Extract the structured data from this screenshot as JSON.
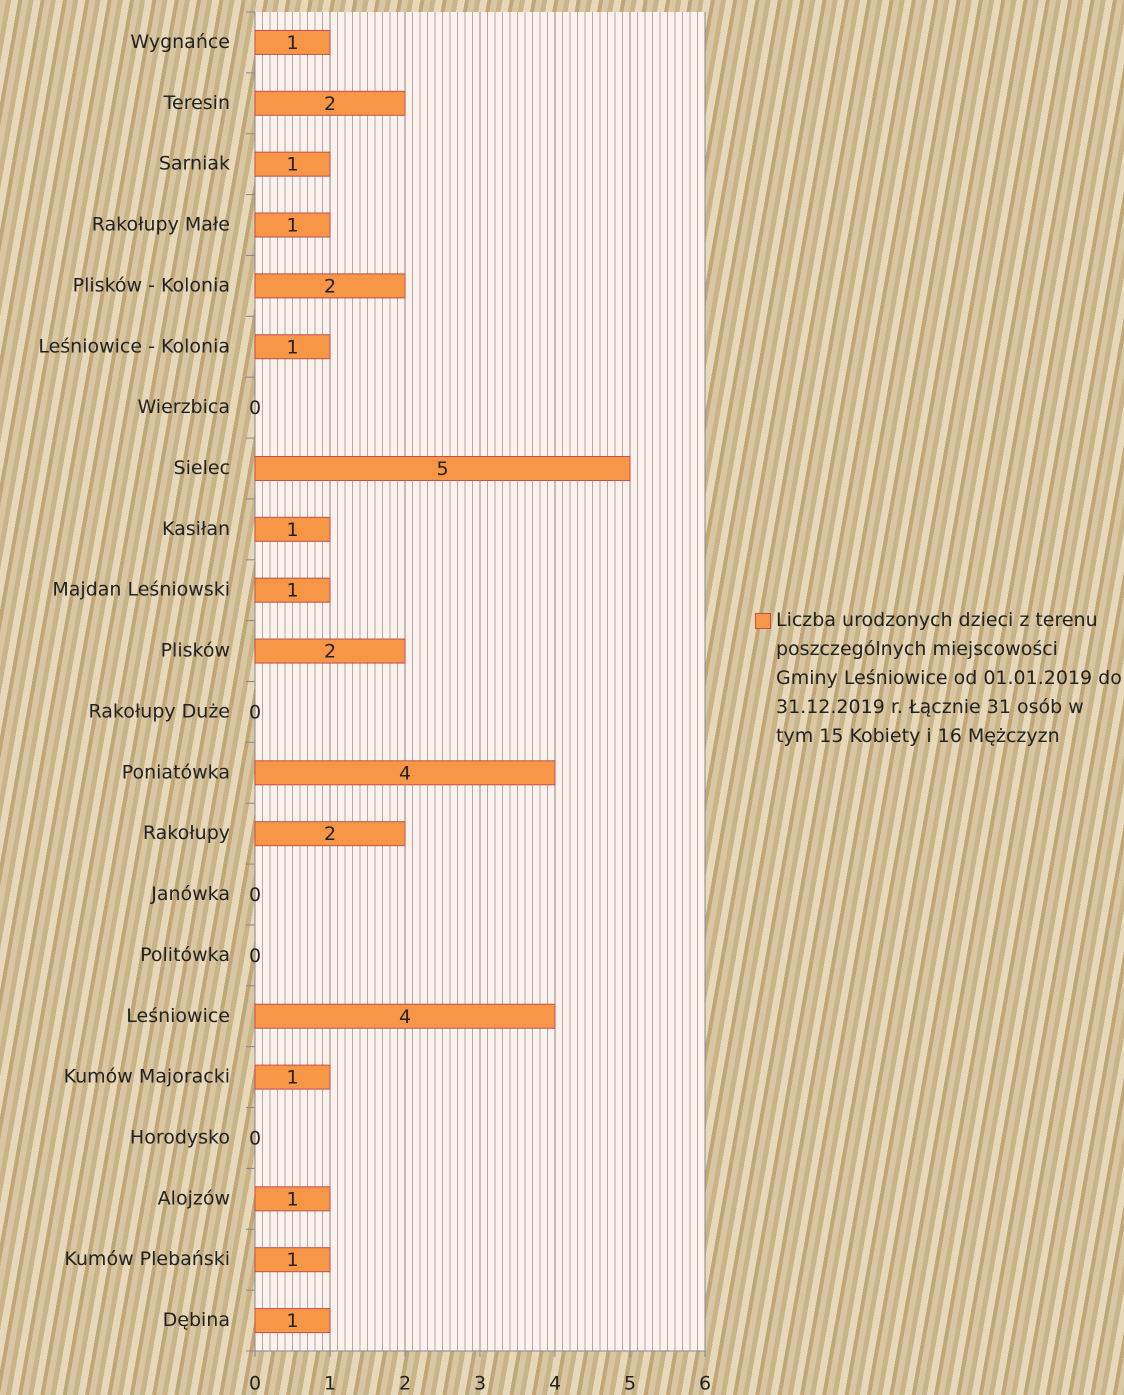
{
  "chart_data": {
    "type": "bar",
    "orientation": "horizontal",
    "categories": [
      "Wygnańce",
      "Teresin",
      "Sarniak",
      "Rakołupy Małe",
      "Plisków - Kolonia",
      "Leśniowice - Kolonia",
      "Wierzbica",
      "Sielec",
      "Kasiłan",
      "Majdan Leśniowski",
      "Plisków",
      "Rakołupy Duże",
      "Poniatówka",
      "Rakołupy",
      "Janówka",
      "Politówka",
      "Leśniowice",
      "Kumów Majoracki",
      "Horodysko",
      "Alojzów",
      "Kumów Plebański",
      "Dębina"
    ],
    "series": [
      {
        "name": "Liczba urodzonych dzieci z terenu poszczególnych miejscowości Gminy Leśniowice od 01.01.2019 do 31.12.2019 r. Łącznie 31 osób w tym 15 Kobiety i 16 Mężczyzn",
        "color": "#f79646",
        "values": [
          1,
          2,
          1,
          1,
          2,
          1,
          0,
          5,
          1,
          1,
          2,
          0,
          4,
          2,
          0,
          0,
          4,
          1,
          0,
          1,
          1,
          1
        ]
      }
    ],
    "xlim": [
      0,
      6
    ],
    "xticks": [
      0,
      1,
      2,
      3,
      4,
      5,
      6
    ],
    "grid": true,
    "legend": "right"
  }
}
